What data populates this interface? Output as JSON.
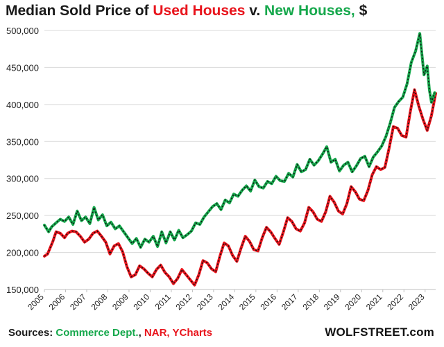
{
  "title": {
    "prefix": "Median Sold Price of ",
    "used": "Used Houses",
    "mid": " v. ",
    "new": "New Houses,",
    "suffix": " $"
  },
  "sources": {
    "label": "Sources: ",
    "src1": "Commerce Dept.",
    "sep1": ", ",
    "src2": "NAR",
    "sep2": ", ",
    "src3": "YCharts"
  },
  "brand": "WOLFSTREET.com",
  "colors": {
    "used": "#e8141c",
    "new": "#16a84c",
    "marker": "#111111",
    "grid": "#d9d9d9"
  },
  "chart_data": {
    "type": "line",
    "title": "Median Sold Price of Used Houses v. New Houses, $",
    "xlabel": "",
    "ylabel": "",
    "xlim": [
      2005,
      2023.5
    ],
    "ylim": [
      150000,
      500000
    ],
    "yticks": [
      150000,
      200000,
      250000,
      300000,
      350000,
      400000,
      450000,
      500000
    ],
    "ytick_labels": [
      "150,000",
      "200,000",
      "250,000",
      "300,000",
      "350,000",
      "400,000",
      "450,000",
      "500,000"
    ],
    "xticks": [
      2005,
      2006,
      2007,
      2008,
      2009,
      2010,
      2011,
      2012,
      2013,
      2014,
      2015,
      2016,
      2017,
      2018,
      2019,
      2020,
      2021,
      2022,
      2023
    ],
    "xtick_labels": [
      "2005",
      "2006",
      "2007",
      "2008",
      "2009",
      "2010",
      "2011",
      "2012",
      "2013",
      "2014",
      "2015",
      "2016",
      "2017",
      "2018",
      "2019",
      "2020",
      "2021",
      "2022",
      "2023"
    ],
    "grid": "horizontal",
    "series": [
      {
        "name": "Used Houses",
        "color": "#e8141c",
        "points": [
          [
            2005.0,
            195000
          ],
          [
            2005.15,
            198000
          ],
          [
            2005.4,
            215000
          ],
          [
            2005.55,
            228000
          ],
          [
            2005.75,
            226000
          ],
          [
            2005.95,
            220000
          ],
          [
            2006.1,
            226000
          ],
          [
            2006.3,
            229000
          ],
          [
            2006.5,
            228000
          ],
          [
            2006.7,
            222000
          ],
          [
            2006.9,
            214000
          ],
          [
            2007.1,
            218000
          ],
          [
            2007.3,
            226000
          ],
          [
            2007.5,
            229000
          ],
          [
            2007.7,
            222000
          ],
          [
            2007.9,
            214000
          ],
          [
            2008.1,
            198000
          ],
          [
            2008.3,
            209000
          ],
          [
            2008.5,
            212000
          ],
          [
            2008.7,
            201000
          ],
          [
            2008.9,
            181000
          ],
          [
            2009.1,
            167000
          ],
          [
            2009.3,
            170000
          ],
          [
            2009.5,
            182000
          ],
          [
            2009.7,
            178000
          ],
          [
            2009.9,
            172000
          ],
          [
            2010.1,
            167000
          ],
          [
            2010.3,
            177000
          ],
          [
            2010.5,
            183000
          ],
          [
            2010.7,
            173000
          ],
          [
            2010.9,
            167000
          ],
          [
            2011.1,
            158000
          ],
          [
            2011.3,
            165000
          ],
          [
            2011.5,
            177000
          ],
          [
            2011.7,
            170000
          ],
          [
            2011.9,
            163000
          ],
          [
            2012.1,
            156000
          ],
          [
            2012.3,
            170000
          ],
          [
            2012.5,
            189000
          ],
          [
            2012.7,
            186000
          ],
          [
            2012.9,
            178000
          ],
          [
            2013.1,
            174000
          ],
          [
            2013.3,
            195000
          ],
          [
            2013.5,
            213000
          ],
          [
            2013.7,
            209000
          ],
          [
            2013.9,
            196000
          ],
          [
            2014.1,
            188000
          ],
          [
            2014.3,
            206000
          ],
          [
            2014.5,
            222000
          ],
          [
            2014.7,
            215000
          ],
          [
            2014.9,
            204000
          ],
          [
            2015.1,
            202000
          ],
          [
            2015.3,
            220000
          ],
          [
            2015.5,
            234000
          ],
          [
            2015.7,
            228000
          ],
          [
            2015.9,
            219000
          ],
          [
            2016.1,
            211000
          ],
          [
            2016.3,
            228000
          ],
          [
            2016.5,
            247000
          ],
          [
            2016.7,
            242000
          ],
          [
            2016.9,
            232000
          ],
          [
            2017.1,
            229000
          ],
          [
            2017.3,
            240000
          ],
          [
            2017.5,
            261000
          ],
          [
            2017.7,
            255000
          ],
          [
            2017.9,
            245000
          ],
          [
            2018.1,
            242000
          ],
          [
            2018.3,
            255000
          ],
          [
            2018.5,
            276000
          ],
          [
            2018.7,
            268000
          ],
          [
            2018.9,
            256000
          ],
          [
            2019.1,
            252000
          ],
          [
            2019.3,
            266000
          ],
          [
            2019.5,
            289000
          ],
          [
            2019.7,
            282000
          ],
          [
            2019.9,
            272000
          ],
          [
            2020.1,
            270000
          ],
          [
            2020.3,
            284000
          ],
          [
            2020.5,
            305000
          ],
          [
            2020.7,
            316000
          ],
          [
            2020.9,
            312000
          ],
          [
            2021.1,
            315000
          ],
          [
            2021.3,
            341000
          ],
          [
            2021.5,
            370000
          ],
          [
            2021.7,
            368000
          ],
          [
            2021.9,
            358000
          ],
          [
            2022.1,
            356000
          ],
          [
            2022.3,
            390000
          ],
          [
            2022.5,
            420000
          ],
          [
            2022.7,
            398000
          ],
          [
            2022.9,
            380000
          ],
          [
            2023.1,
            365000
          ],
          [
            2023.3,
            385000
          ],
          [
            2023.5,
            415000
          ]
        ]
      },
      {
        "name": "New Houses",
        "color": "#16a84c",
        "points": [
          [
            2005.0,
            237000
          ],
          [
            2005.2,
            228000
          ],
          [
            2005.35,
            235000
          ],
          [
            2005.55,
            240000
          ],
          [
            2005.75,
            245000
          ],
          [
            2005.95,
            242000
          ],
          [
            2006.15,
            248000
          ],
          [
            2006.35,
            238000
          ],
          [
            2006.55,
            256000
          ],
          [
            2006.75,
            243000
          ],
          [
            2006.95,
            248000
          ],
          [
            2007.15,
            239000
          ],
          [
            2007.35,
            261000
          ],
          [
            2007.55,
            244000
          ],
          [
            2007.75,
            251000
          ],
          [
            2007.95,
            236000
          ],
          [
            2008.15,
            241000
          ],
          [
            2008.35,
            232000
          ],
          [
            2008.55,
            236000
          ],
          [
            2008.75,
            228000
          ],
          [
            2008.95,
            220000
          ],
          [
            2009.15,
            212000
          ],
          [
            2009.35,
            219000
          ],
          [
            2009.55,
            207000
          ],
          [
            2009.75,
            218000
          ],
          [
            2009.95,
            214000
          ],
          [
            2010.15,
            222000
          ],
          [
            2010.35,
            208000
          ],
          [
            2010.55,
            228000
          ],
          [
            2010.75,
            213000
          ],
          [
            2010.95,
            228000
          ],
          [
            2011.15,
            217000
          ],
          [
            2011.35,
            230000
          ],
          [
            2011.55,
            220000
          ],
          [
            2011.75,
            224000
          ],
          [
            2011.95,
            229000
          ],
          [
            2012.15,
            240000
          ],
          [
            2012.35,
            238000
          ],
          [
            2012.55,
            248000
          ],
          [
            2012.75,
            255000
          ],
          [
            2012.95,
            262000
          ],
          [
            2013.15,
            266000
          ],
          [
            2013.35,
            258000
          ],
          [
            2013.55,
            271000
          ],
          [
            2013.75,
            267000
          ],
          [
            2013.95,
            279000
          ],
          [
            2014.15,
            276000
          ],
          [
            2014.35,
            284000
          ],
          [
            2014.55,
            290000
          ],
          [
            2014.75,
            283000
          ],
          [
            2014.95,
            298000
          ],
          [
            2015.15,
            289000
          ],
          [
            2015.35,
            287000
          ],
          [
            2015.55,
            296000
          ],
          [
            2015.75,
            293000
          ],
          [
            2015.95,
            303000
          ],
          [
            2016.15,
            297000
          ],
          [
            2016.35,
            296000
          ],
          [
            2016.55,
            307000
          ],
          [
            2016.75,
            302000
          ],
          [
            2016.95,
            319000
          ],
          [
            2017.15,
            309000
          ],
          [
            2017.35,
            312000
          ],
          [
            2017.55,
            326000
          ],
          [
            2017.75,
            318000
          ],
          [
            2017.95,
            324000
          ],
          [
            2018.15,
            333000
          ],
          [
            2018.35,
            343000
          ],
          [
            2018.55,
            322000
          ],
          [
            2018.75,
            326000
          ],
          [
            2018.95,
            310000
          ],
          [
            2019.15,
            318000
          ],
          [
            2019.35,
            322000
          ],
          [
            2019.55,
            309000
          ],
          [
            2019.75,
            317000
          ],
          [
            2019.95,
            327000
          ],
          [
            2020.15,
            330000
          ],
          [
            2020.35,
            316000
          ],
          [
            2020.55,
            329000
          ],
          [
            2020.75,
            336000
          ],
          [
            2020.95,
            344000
          ],
          [
            2021.15,
            357000
          ],
          [
            2021.35,
            375000
          ],
          [
            2021.55,
            396000
          ],
          [
            2021.75,
            404000
          ],
          [
            2021.95,
            410000
          ],
          [
            2022.15,
            428000
          ],
          [
            2022.35,
            457000
          ],
          [
            2022.55,
            472000
          ],
          [
            2022.75,
            496000
          ],
          [
            2022.95,
            440000
          ],
          [
            2023.1,
            452000
          ],
          [
            2023.2,
            420000
          ],
          [
            2023.3,
            403000
          ],
          [
            2023.45,
            416000
          ]
        ]
      }
    ],
    "annotations": []
  }
}
